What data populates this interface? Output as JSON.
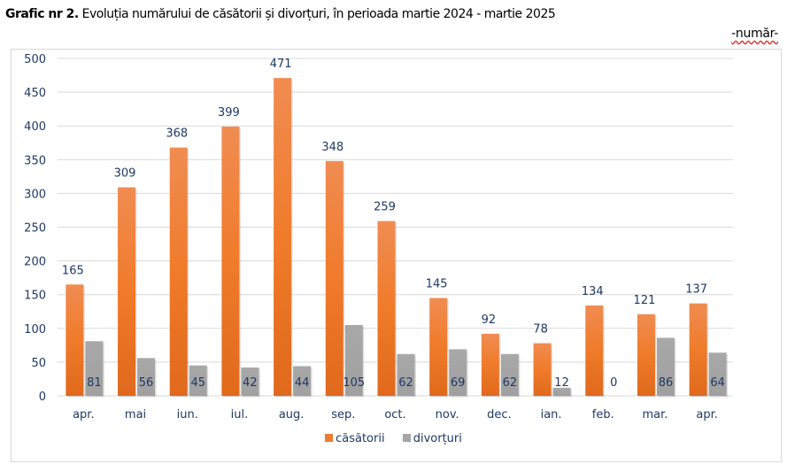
{
  "title_bold": "Grafic nr 2.",
  "title_text": " Evoluția numărului de căsătorii și divorțuri, în perioada martie 2024 - martie 2025",
  "unit_label": "-număr-",
  "chart_data": {
    "type": "bar",
    "title": "Grafic nr 2. Evoluția numărului de căsătorii și divorțuri, în perioada martie 2024 - martie 2025",
    "xlabel": "",
    "ylabel": "-număr-",
    "ylim": [
      0,
      500
    ],
    "yticks": [
      "0",
      "50",
      "100",
      "150",
      "200",
      "250",
      "300",
      "350",
      "400",
      "450",
      "500"
    ],
    "grid": true,
    "legend": "bottom",
    "categories": [
      "apr.",
      "mai",
      "iun.",
      "iul.",
      "aug.",
      "sep.",
      "oct.",
      "nov.",
      "dec.",
      "ian.",
      "feb.",
      "mar.",
      "apr."
    ],
    "series": [
      {
        "name": "căsătorii",
        "color": "#ed7d31",
        "values": [
          165,
          309,
          368,
          399,
          471,
          348,
          259,
          145,
          92,
          78,
          134,
          121,
          137
        ]
      },
      {
        "name": "divorțuri",
        "color": "#a5a5a5",
        "values": [
          81,
          56,
          45,
          42,
          44,
          105,
          62,
          69,
          62,
          12,
          0,
          86,
          64
        ]
      }
    ]
  }
}
